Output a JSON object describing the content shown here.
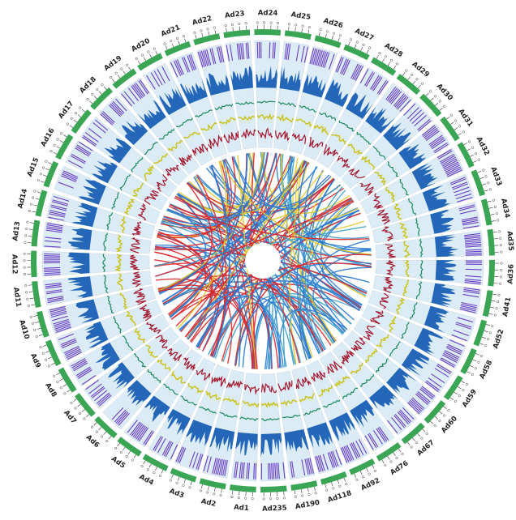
{
  "figure": {
    "type": "circos",
    "chromosomes": [
      "Ad1",
      "Ad2",
      "Ad3",
      "Ad4",
      "Ad5",
      "Ad6",
      "Ad7",
      "Ad8",
      "Ad9",
      "Ad10",
      "Ad11",
      "Ad12",
      "Ad13",
      "Ad14",
      "Ad15",
      "Ad16",
      "Ad17",
      "Ad18",
      "Ad19",
      "Ad20",
      "Ad21",
      "Ad22",
      "Ad23",
      "Ad24",
      "Ad25",
      "Ad26",
      "Ad27",
      "Ad28",
      "Ad29",
      "Ad30",
      "Ad31",
      "Ad32",
      "Ad33",
      "Ad34",
      "Ad35",
      "Ad36",
      "Ad41",
      "Ad52",
      "Ad58",
      "Ad59",
      "Ad60",
      "Ad67",
      "Ad76",
      "Ad92",
      "Ad118",
      "Ad190",
      "Ad235"
    ],
    "tracks": [
      {
        "name": "karyotype",
        "color": "#3aa655"
      },
      {
        "name": "density-bars",
        "color": "#6a3fc2"
      },
      {
        "name": "histogram",
        "color": "#2467b8"
      },
      {
        "name": "line-green",
        "color": "#1f8a5c"
      },
      {
        "name": "line-yellow",
        "color": "#c9c216"
      },
      {
        "name": "line-red",
        "color": "#a4182e"
      }
    ],
    "track_background": "#dcecf7",
    "link_colors": [
      "#d9262b",
      "#2a7ad1",
      "#e3c62a",
      "#3aa0c8"
    ]
  }
}
